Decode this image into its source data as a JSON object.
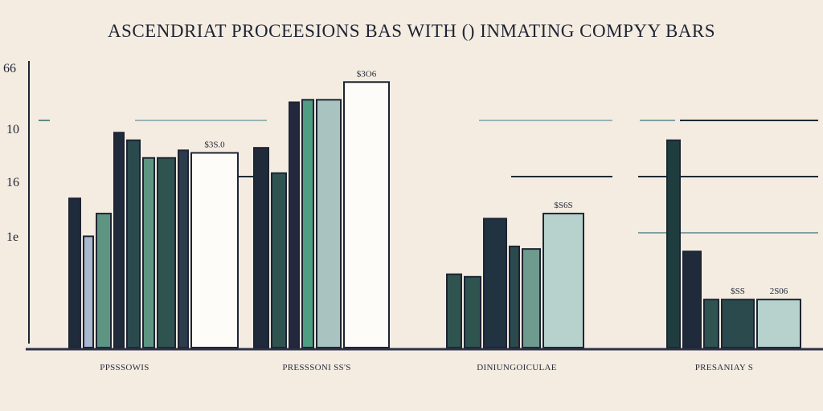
{
  "chart_data": {
    "type": "bar",
    "title": "ASCENDRIAT PROCEESIONS BAS WITH () INMATING COMPYY BARS",
    "xlabel": "",
    "ylabel": "",
    "y_tick_labels": [
      "66",
      "10",
      "16",
      "1e"
    ],
    "ylim": [
      0,
      100
    ],
    "grid": false,
    "categories": [
      "PPSSSOWIS",
      "PRESSSONI SS'S",
      "DINIUNGOICULAE",
      "PRESANIAY S"
    ],
    "groups": [
      {
        "category": "PPSSSOWIS",
        "bars": [
          {
            "value": 59,
            "color": "#1f2a3a"
          },
          {
            "value": 44,
            "color": "#a9b8cf"
          },
          {
            "value": 53,
            "color": "#5e9582"
          },
          {
            "value": 85,
            "color": "#1f2a3a"
          },
          {
            "value": 82,
            "color": "#2a4a4e"
          },
          {
            "value": 75,
            "color": "#5e9582"
          },
          {
            "value": 75,
            "color": "#2f5450"
          },
          {
            "value": 78,
            "color": "#2d3b4c"
          },
          {
            "value": 77,
            "color": "#fdfcf8",
            "label": "$3S.0"
          }
        ]
      },
      {
        "category": "PRESSSONI SS'S",
        "bars": [
          {
            "value": 79,
            "color": "#1f2a3a"
          },
          {
            "value": 69,
            "color": "#2f5450"
          },
          {
            "value": 97,
            "color": "#24283f"
          },
          {
            "value": 98,
            "color": "#4f9e84"
          },
          {
            "value": 98,
            "color": "#a9c3c0"
          },
          {
            "value": 105,
            "color": "#fdfcf8",
            "label": "$3O6"
          }
        ]
      },
      {
        "category": "DINIUNGOICULAE",
        "bars": [
          {
            "value": 29,
            "color": "#2f5450"
          },
          {
            "value": 28,
            "color": "#2f5450"
          },
          {
            "value": 51,
            "color": "#213240"
          },
          {
            "value": 40,
            "color": "#2a4a4e"
          },
          {
            "value": 39,
            "color": "#6f9a8e"
          },
          {
            "value": 53,
            "color": "#b7d2cd",
            "label": "$S6S"
          }
        ]
      },
      {
        "category": "PRESANIAY S",
        "bars": [
          {
            "value": 82,
            "color": "#1f3d3e"
          },
          {
            "value": 38,
            "color": "#1f2a3a"
          },
          {
            "value": 19,
            "color": "#2f5450"
          },
          {
            "value": 19,
            "color": "#2a4a4e",
            "label": "$SS"
          },
          {
            "value": 19,
            "color": "#b7d2cd",
            "label": "2S06"
          }
        ]
      }
    ]
  }
}
